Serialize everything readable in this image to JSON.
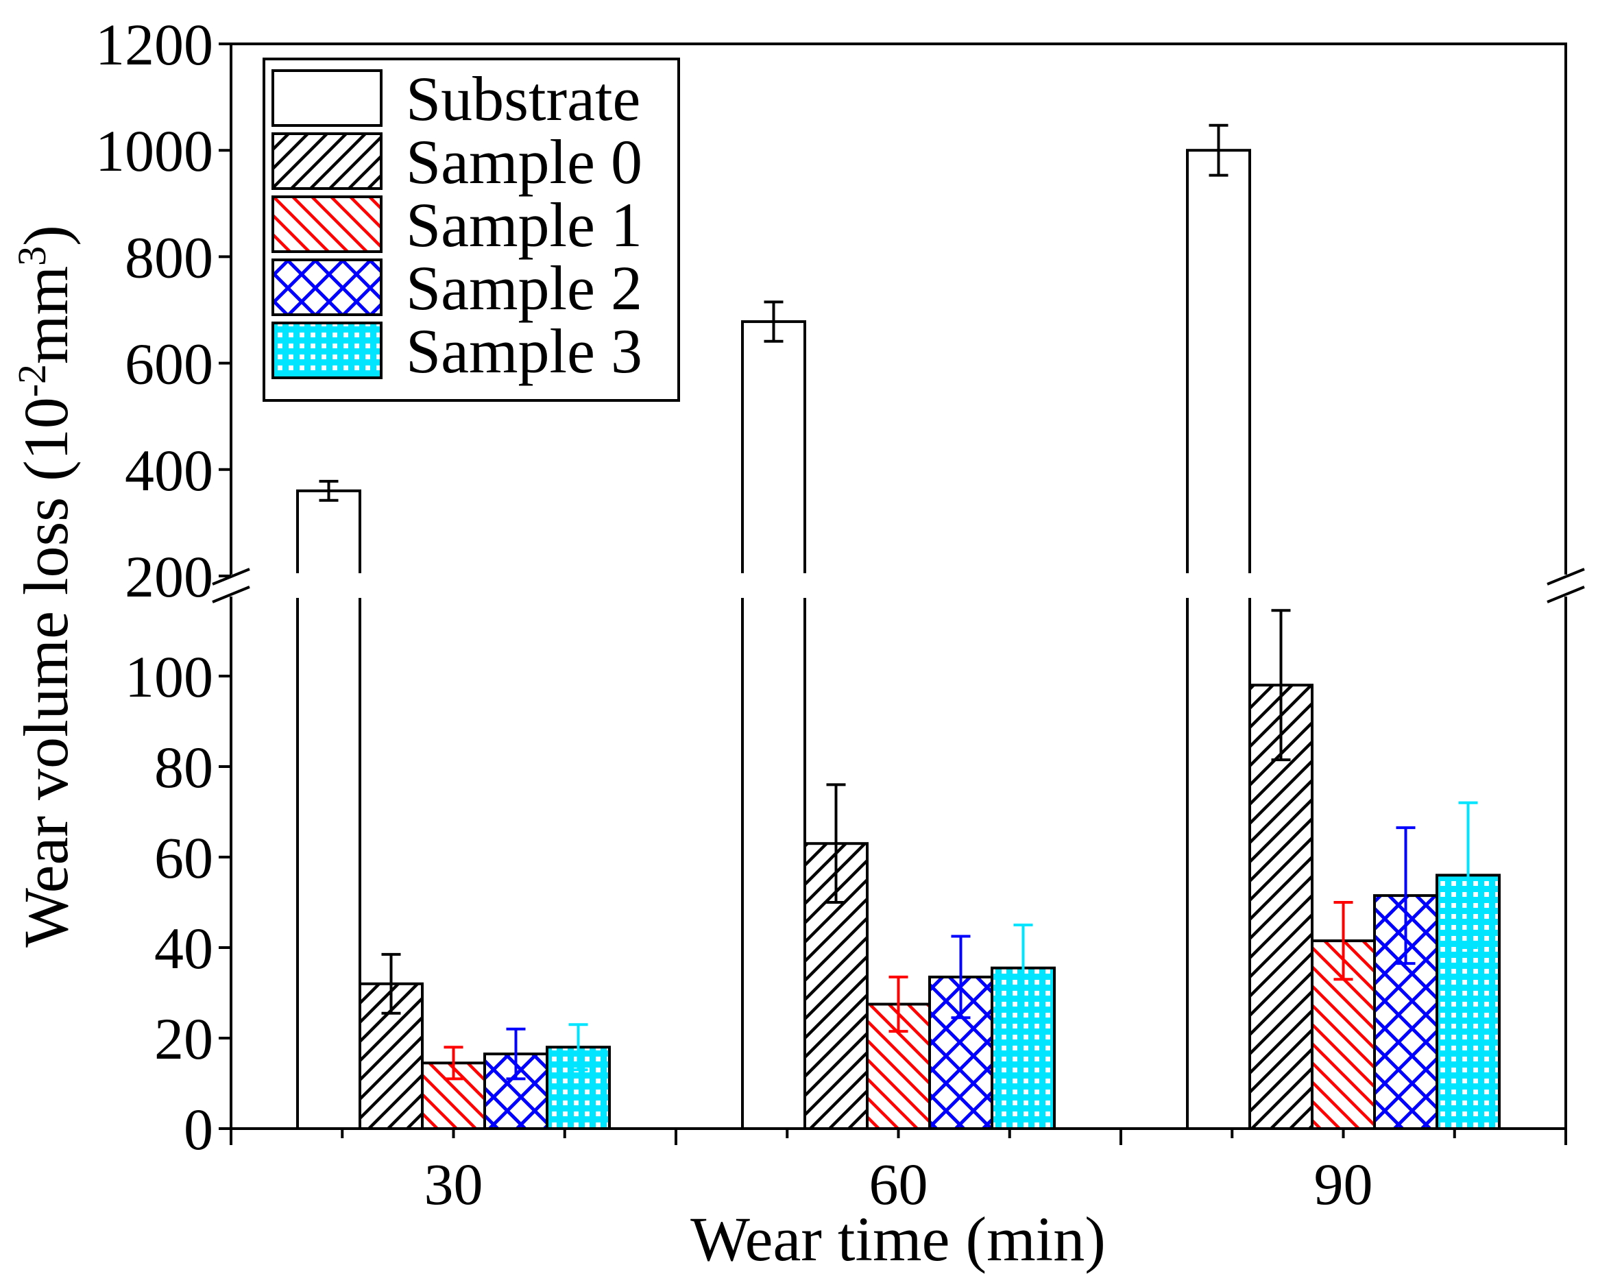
{
  "chart_data": {
    "type": "bar",
    "title": "",
    "xlabel": "Wear time (min)",
    "ylabel_main": "Wear volume loss (10",
    "ylabel_sup1": "-2",
    "ylabel_mid": "mm",
    "ylabel_sup2": "3",
    "ylabel_end": ")",
    "categories": [
      "30",
      "60",
      "90"
    ],
    "axis_break": {
      "lower_range": [
        0,
        120
      ],
      "upper_range": [
        200,
        1200
      ]
    },
    "y_ticks_lower": [
      "0",
      "20",
      "40",
      "60",
      "80",
      "100"
    ],
    "y_ticks_upper": [
      "200",
      "400",
      "600",
      "800",
      "1000",
      "1200"
    ],
    "y_tick_values_lower": [
      0,
      20,
      40,
      60,
      80,
      100
    ],
    "y_tick_values_upper": [
      200,
      400,
      600,
      800,
      1000,
      1200
    ],
    "legend_position": "top-left",
    "series": [
      {
        "name": "Substrate",
        "values": [
          360,
          678,
          1000
        ],
        "errors": [
          18,
          37,
          47
        ],
        "color": "#000000",
        "pattern": "none"
      },
      {
        "name": "Sample 0",
        "values": [
          32,
          63,
          98
        ],
        "errors": [
          6.5,
          13,
          16.5
        ],
        "color": "#000000",
        "pattern": "diagonal-up"
      },
      {
        "name": "Sample 1",
        "values": [
          14.5,
          27.5,
          41.5
        ],
        "errors": [
          3.5,
          6,
          8.5
        ],
        "color": "#ff0000",
        "pattern": "diagonal-down"
      },
      {
        "name": "Sample 2",
        "values": [
          16.5,
          33.5,
          51.5
        ],
        "errors": [
          5.5,
          9,
          15
        ],
        "color": "#0000ff",
        "pattern": "crosshatch"
      },
      {
        "name": "Sample 3",
        "values": [
          18,
          35.5,
          56
        ],
        "errors": [
          5,
          9.5,
          16
        ],
        "color": "#00e5ff",
        "pattern": "grid"
      }
    ]
  }
}
